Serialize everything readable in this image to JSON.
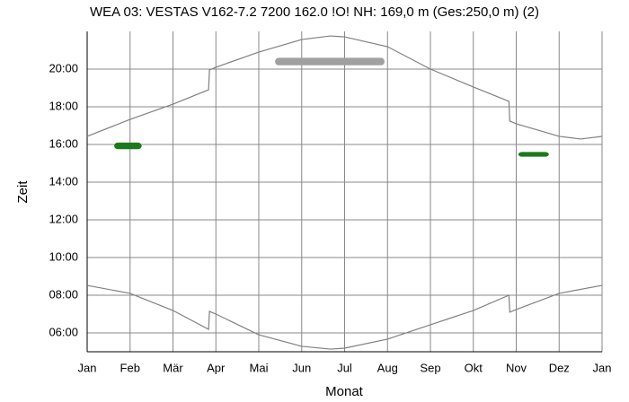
{
  "chart_data": {
    "type": "line",
    "title": "WEA 03: VESTAS V162-7.2 7200 162.0 !O! NH: 169,0 m (Ges:250,0 m) (2)",
    "x_label": "Monat",
    "y_label": "Zeit",
    "xlim": [
      0,
      12
    ],
    "ylim": [
      5,
      22
    ],
    "xticks": [
      {
        "value": 0,
        "label": "Jan"
      },
      {
        "value": 1,
        "label": "Feb"
      },
      {
        "value": 2,
        "label": "Mär"
      },
      {
        "value": 3,
        "label": "Apr"
      },
      {
        "value": 4,
        "label": "Mai"
      },
      {
        "value": 5,
        "label": "Jun"
      },
      {
        "value": 6,
        "label": "Jul"
      },
      {
        "value": 7,
        "label": "Aug"
      },
      {
        "value": 8,
        "label": "Sep"
      },
      {
        "value": 9,
        "label": "Okt"
      },
      {
        "value": 10,
        "label": "Nov"
      },
      {
        "value": 11,
        "label": "Dez"
      },
      {
        "value": 12,
        "label": "Jan"
      }
    ],
    "yticks": [
      {
        "value": 6,
        "label": "06:00"
      },
      {
        "value": 8,
        "label": "08:00"
      },
      {
        "value": 10,
        "label": "10:00"
      },
      {
        "value": 12,
        "label": "12:00"
      },
      {
        "value": 14,
        "label": "14:00"
      },
      {
        "value": 16,
        "label": "16:00"
      },
      {
        "value": 18,
        "label": "18:00"
      },
      {
        "value": 20,
        "label": "20:00"
      }
    ],
    "grid": true,
    "series": [
      {
        "color": "#808080",
        "x": [
          0,
          1,
          2,
          2.83,
          2.85,
          3,
          4,
          5,
          5.67,
          6,
          7,
          8,
          9,
          9.83,
          9.85,
          10,
          11,
          11.5,
          12
        ],
        "values": [
          16.43,
          17.33,
          18.14,
          18.9,
          19.95,
          20.1,
          20.9,
          21.57,
          21.76,
          21.71,
          21.19,
          20.0,
          19.05,
          18.29,
          17.24,
          17.1,
          16.43,
          16.29,
          16.43
        ]
      },
      {
        "color": "#808080",
        "x": [
          0,
          1,
          2,
          2.83,
          2.85,
          3,
          4,
          5,
          5.67,
          6,
          7,
          8,
          9,
          9.83,
          9.85,
          10,
          11,
          12
        ],
        "values": [
          8.52,
          8.1,
          7.19,
          6.19,
          7.14,
          7.0,
          5.9,
          5.29,
          5.14,
          5.19,
          5.67,
          6.43,
          7.19,
          8.0,
          7.1,
          7.24,
          8.1,
          8.52
        ]
      }
    ],
    "shadow_regions": [
      {
        "color": "#1a7a1a",
        "x": [
          0.63,
          1.27
        ],
        "y": [
          15.75,
          16.1
        ]
      },
      {
        "color": "#a0a0a0",
        "x": [
          4.38,
          6.93
        ],
        "y": [
          20.2,
          20.6
        ]
      },
      {
        "color": "#1a7a1a",
        "x": [
          10.05,
          10.76
        ],
        "y": [
          15.35,
          15.6
        ]
      }
    ]
  }
}
